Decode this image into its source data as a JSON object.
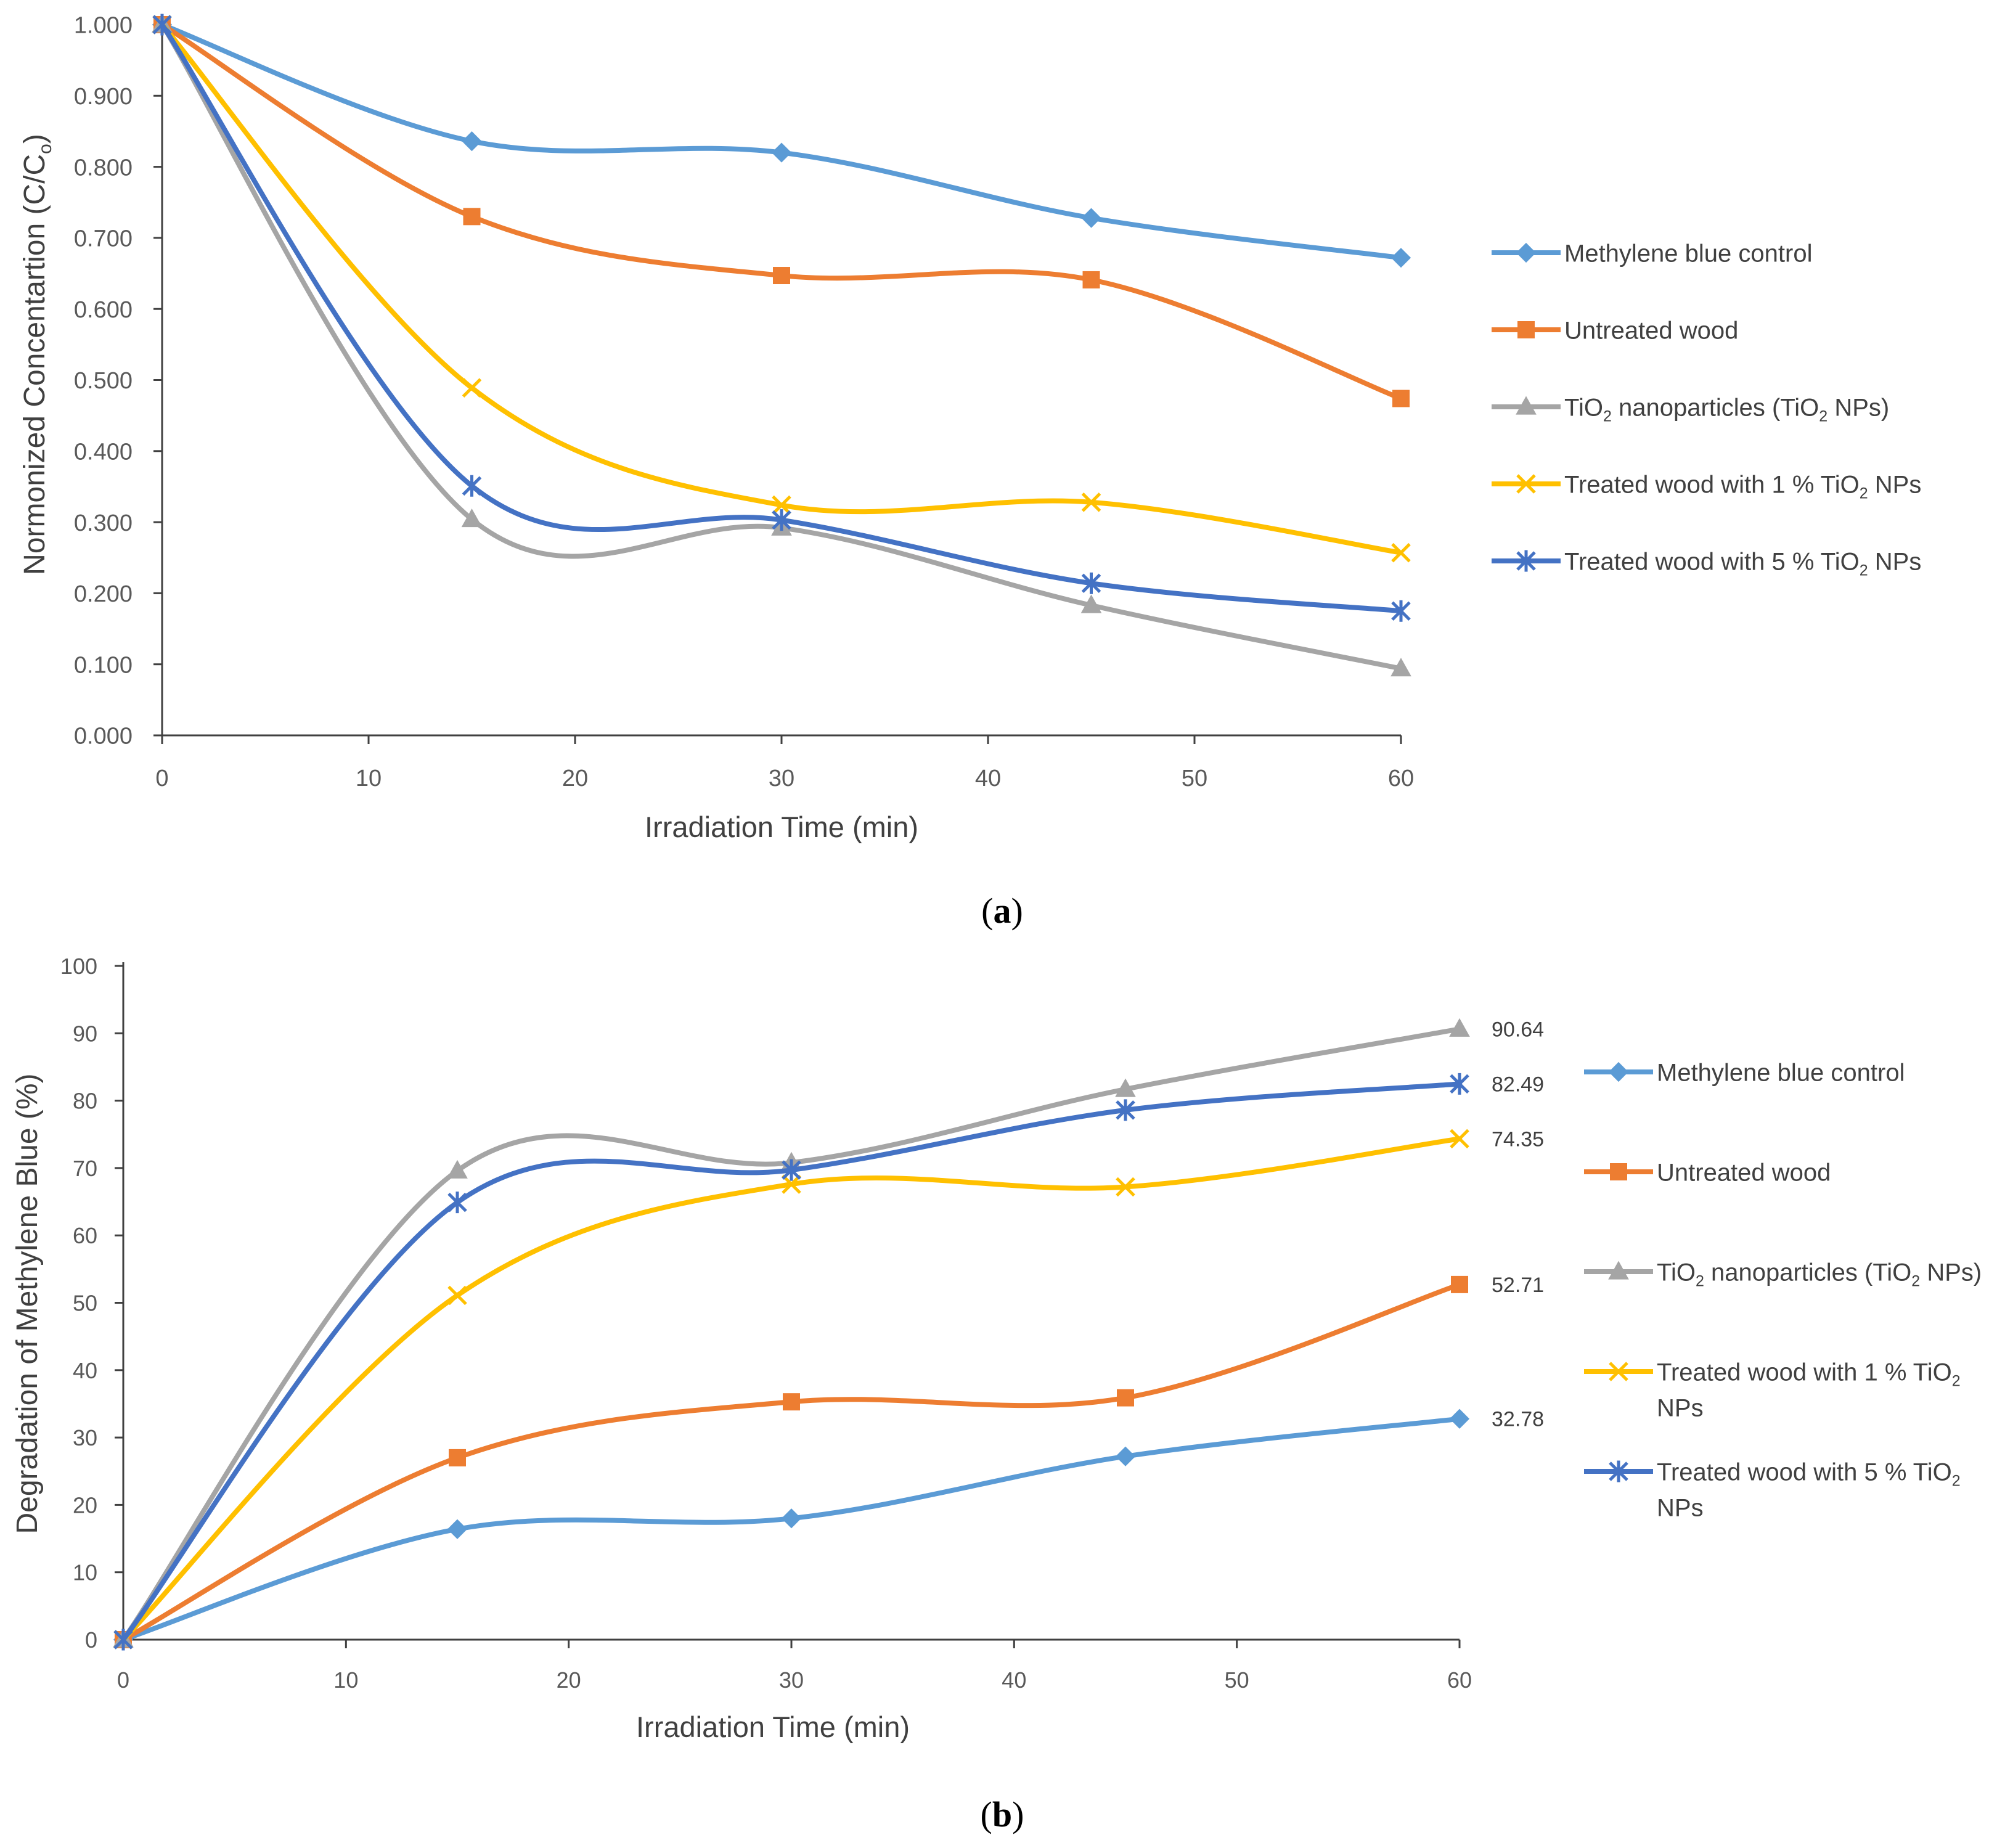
{
  "chart_data": [
    {
      "type": "line",
      "panel_label": "a",
      "xlabel": "Irradiation Time (min)",
      "ylabel_main": "Normonized Concentartion (C/C",
      "ylabel_sub": "o",
      "ylabel_close": ")",
      "xlim": [
        0,
        60
      ],
      "ylim": [
        0,
        1
      ],
      "xticks": [
        0,
        10,
        20,
        30,
        40,
        50,
        60
      ],
      "xtick_labels": [
        "0",
        "10",
        "20",
        "30",
        "40",
        "50",
        "60"
      ],
      "yticks": [
        0,
        0.1,
        0.2,
        0.3,
        0.4,
        0.5,
        0.6,
        0.7,
        0.8,
        0.9,
        1.0
      ],
      "ytick_labels": [
        "0.000",
        "0.100",
        "0.200",
        "0.300",
        "0.400",
        "0.500",
        "0.600",
        "0.700",
        "0.800",
        "0.900",
        "1.000"
      ],
      "grid": false,
      "legend_position": "right",
      "x": [
        0,
        15,
        30,
        45,
        60
      ],
      "series": [
        {
          "name": "Methylene blue control",
          "color": "#5b9bd5",
          "marker": "diamond",
          "values": [
            1.0,
            0.836,
            0.82,
            0.728,
            0.672
          ],
          "legend_lines": [
            [
              {
                "t": "Methylene blue control"
              }
            ]
          ]
        },
        {
          "name": "Untreated wood",
          "color": "#ed7d31",
          "marker": "square",
          "values": [
            1.0,
            0.73,
            0.647,
            0.641,
            0.474
          ],
          "legend_lines": [
            [
              {
                "t": "Untreated wood"
              }
            ]
          ]
        },
        {
          "name": "TiO2 nanoparticles (TiO2 NPs)",
          "color": "#a5a5a5",
          "marker": "triangle",
          "values": [
            1.0,
            0.304,
            0.292,
            0.183,
            0.094
          ],
          "legend_lines": [
            [
              {
                "t": "TiO"
              },
              {
                "t": "2",
                "sub": true
              },
              {
                "t": " nanoparticles (TiO"
              },
              {
                "t": "2",
                "sub": true
              },
              {
                "t": " NPs)"
              }
            ]
          ]
        },
        {
          "name": "Treated wood with 1 % TiO2 NPs",
          "color": "#ffc000",
          "marker": "x",
          "values": [
            1.0,
            0.489,
            0.324,
            0.328,
            0.257
          ],
          "legend_lines": [
            [
              {
                "t": "Treated wood with 1 % TiO"
              },
              {
                "t": "2",
                "sub": true
              },
              {
                "t": " NPs"
              }
            ]
          ]
        },
        {
          "name": "Treated wood with 5 % TiO2 NPs",
          "color": "#4472c4",
          "marker": "star",
          "values": [
            1.0,
            0.351,
            0.303,
            0.214,
            0.175
          ],
          "legend_lines": [
            [
              {
                "t": "Treated wood with 5 % TiO"
              },
              {
                "t": "2",
                "sub": true
              },
              {
                "t": " NPs"
              }
            ]
          ]
        }
      ]
    },
    {
      "type": "line",
      "panel_label": "b",
      "xlabel": "Irradiation Time (min)",
      "ylabel_main": "Degradation of Methylene Blue (%)",
      "ylabel_sub": "",
      "ylabel_close": "",
      "xlim": [
        0,
        60
      ],
      "ylim": [
        0,
        100
      ],
      "xticks": [
        0,
        10,
        20,
        30,
        40,
        50,
        60
      ],
      "xtick_labels": [
        "0",
        "10",
        "20",
        "30",
        "40",
        "50",
        "60"
      ],
      "yticks": [
        0,
        10,
        20,
        30,
        40,
        50,
        60,
        70,
        80,
        90,
        100
      ],
      "ytick_labels": [
        "0",
        "10",
        "20",
        "30",
        "40",
        "50",
        "60",
        "70",
        "80",
        "90",
        "100"
      ],
      "grid": false,
      "legend_position": "right",
      "x": [
        0,
        15,
        30,
        45,
        60
      ],
      "series": [
        {
          "name": "Methylene blue control",
          "color": "#5b9bd5",
          "marker": "diamond",
          "values": [
            0,
            16.4,
            18.0,
            27.2,
            32.78
          ],
          "end_label": "32.78",
          "legend_lines": [
            [
              {
                "t": "Methylene blue control"
              }
            ]
          ]
        },
        {
          "name": "Untreated wood",
          "color": "#ed7d31",
          "marker": "square",
          "values": [
            0,
            27.0,
            35.3,
            35.9,
            52.71
          ],
          "end_label": "52.71",
          "legend_lines": [
            [
              {
                "t": "Untreated wood"
              }
            ]
          ]
        },
        {
          "name": "TiO2 nanoparticles (TiO2 NPs)",
          "color": "#a5a5a5",
          "marker": "triangle",
          "values": [
            0,
            69.6,
            70.8,
            81.7,
            90.64
          ],
          "end_label": "90.64",
          "legend_lines": [
            [
              {
                "t": "TiO"
              },
              {
                "t": "2",
                "sub": true
              },
              {
                "t": " nanoparticles (TiO"
              },
              {
                "t": "2",
                "sub": true
              },
              {
                "t": " NPs)"
              }
            ]
          ]
        },
        {
          "name": "Treated wood with 1 % TiO2 NPs",
          "color": "#ffc000",
          "marker": "x",
          "values": [
            0,
            51.1,
            67.6,
            67.2,
            74.35
          ],
          "end_label": "74.35",
          "legend_lines": [
            [
              {
                "t": "Treated wood with 1 % TiO"
              },
              {
                "t": "2",
                "sub": true
              }
            ],
            [
              {
                "t": "NPs"
              }
            ]
          ]
        },
        {
          "name": "Treated wood with 5 % TiO2 NPs",
          "color": "#4472c4",
          "marker": "star",
          "values": [
            0,
            64.9,
            69.7,
            78.6,
            82.49
          ],
          "end_label": "82.49",
          "legend_lines": [
            [
              {
                "t": "Treated wood with 5 % TiO"
              },
              {
                "t": "2",
                "sub": true
              }
            ],
            [
              {
                "t": "NPs"
              }
            ]
          ]
        }
      ]
    }
  ]
}
